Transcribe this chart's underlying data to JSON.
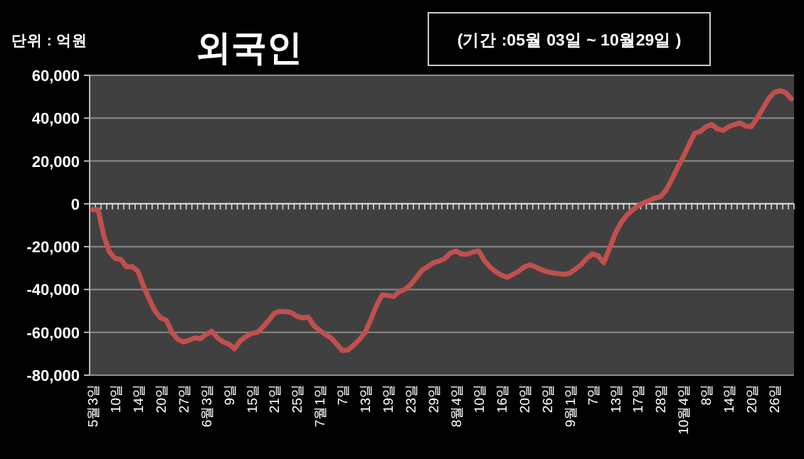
{
  "chart_data": {
    "type": "line",
    "title": "외국인",
    "subtitle": "(기간 :05월 03일 ~ 10월29일 )",
    "ylabel": "단위 : 억원",
    "categories": [
      "5월3일",
      null,
      null,
      null,
      "10일",
      null,
      null,
      null,
      "14일",
      null,
      null,
      null,
      "20일",
      null,
      null,
      null,
      "27일",
      null,
      null,
      null,
      "6월3일",
      null,
      null,
      null,
      "9일",
      null,
      null,
      null,
      "15일",
      null,
      null,
      null,
      "21일",
      null,
      null,
      null,
      "25일",
      null,
      null,
      null,
      "7월1일",
      null,
      null,
      null,
      "7일",
      null,
      null,
      null,
      "13일",
      null,
      null,
      null,
      "19일",
      null,
      null,
      null,
      "23일",
      null,
      null,
      null,
      "29일",
      null,
      null,
      null,
      "8월4일",
      null,
      null,
      null,
      "10일",
      null,
      null,
      null,
      "16일",
      null,
      null,
      null,
      "20일",
      null,
      null,
      null,
      "26일",
      null,
      null,
      null,
      "9월1일",
      null,
      null,
      null,
      "7일",
      null,
      null,
      null,
      "13일",
      null,
      null,
      null,
      "17일",
      null,
      null,
      null,
      "28일",
      null,
      null,
      null,
      "10월4일",
      null,
      null,
      null,
      "8일",
      null,
      null,
      null,
      "14일",
      null,
      null,
      null,
      "20일",
      null,
      null,
      null,
      "26일",
      null,
      null,
      null
    ],
    "values": [
      -2700,
      -2700,
      -15000,
      -22500,
      -25500,
      -26000,
      -29500,
      -29300,
      -31500,
      -38500,
      -44500,
      -50000,
      -53300,
      -54400,
      -60000,
      -63300,
      -64500,
      -63700,
      -62600,
      -63000,
      -61000,
      -59500,
      -62500,
      -64500,
      -65500,
      -67700,
      -64000,
      -62000,
      -60500,
      -60000,
      -57500,
      -54500,
      -51100,
      -50200,
      -50300,
      -50800,
      -52500,
      -53300,
      -52900,
      -57000,
      -59000,
      -61000,
      -62600,
      -65500,
      -68500,
      -68200,
      -66000,
      -63300,
      -60000,
      -54000,
      -47500,
      -42500,
      -42800,
      -43300,
      -41000,
      -40000,
      -37800,
      -34500,
      -31000,
      -29400,
      -27500,
      -26800,
      -25600,
      -23000,
      -22000,
      -23500,
      -23500,
      -22500,
      -22000,
      -26500,
      -29500,
      -31800,
      -33300,
      -34300,
      -33000,
      -31500,
      -29500,
      -28500,
      -29500,
      -30800,
      -31700,
      -32200,
      -32600,
      -32900,
      -32500,
      -30500,
      -28500,
      -25500,
      -23400,
      -24200,
      -27500,
      -21000,
      -14000,
      -9000,
      -5500,
      -3000,
      -1000,
      400,
      1500,
      2700,
      3300,
      6500,
      11500,
      17000,
      22000,
      27500,
      33000,
      33800,
      36000,
      37000,
      35000,
      34300,
      36000,
      37000,
      37800,
      36300,
      36000,
      40000,
      44500,
      49000,
      52000,
      52800,
      52000,
      49000
    ],
    "color": "#c0504d",
    "grid": "y",
    "ylim": [
      -80000,
      60000
    ],
    "yticks": [
      {
        "value": -80000,
        "label": "-80,000"
      },
      {
        "value": -60000,
        "label": "-60,000"
      },
      {
        "value": -40000,
        "label": "-40,000"
      },
      {
        "value": -20000,
        "label": "-20,000"
      },
      0,
      {
        "value": 20000,
        "label": "20,000"
      },
      {
        "value": 40000,
        "label": "40,000"
      },
      {
        "value": 60000,
        "label": "60,000"
      }
    ]
  }
}
